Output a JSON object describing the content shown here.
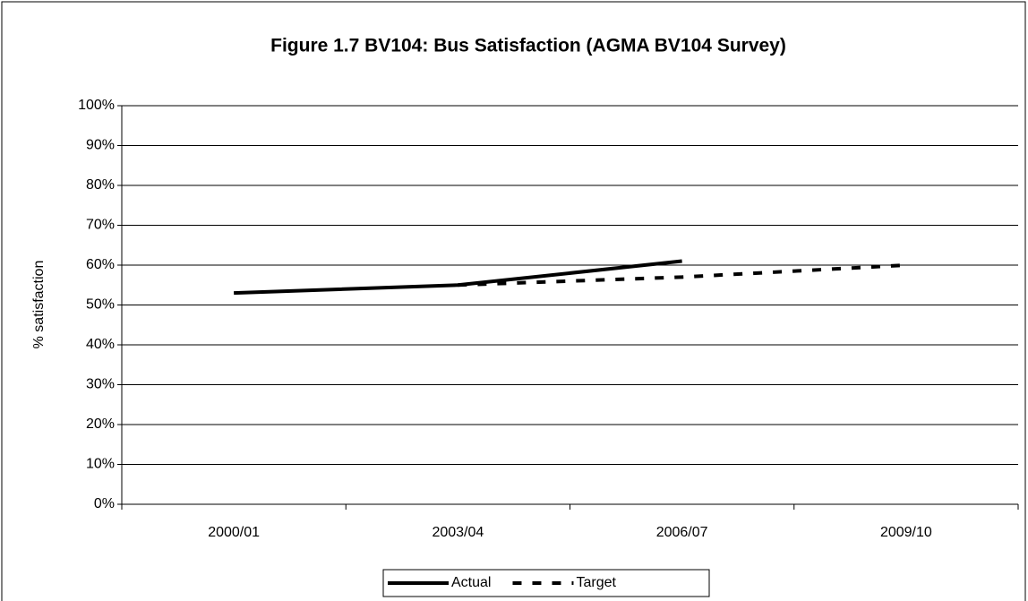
{
  "chart_data": {
    "type": "line",
    "title": "Figure 1.7 BV104: Bus Satisfaction (AGMA BV104 Survey)",
    "y_label": "% satisfaction",
    "categories": [
      "2000/01",
      "2003/04",
      "2006/07",
      "2009/10"
    ],
    "series": [
      {
        "name": "Actual",
        "color": "#000000",
        "line_style": "solid",
        "values": [
          53,
          55,
          61,
          null
        ]
      },
      {
        "name": "Target",
        "color": "#000000",
        "line_style": "dashed",
        "values": [
          null,
          55,
          57,
          60
        ]
      }
    ],
    "ylim": [
      0,
      100
    ],
    "yticks": [
      {
        "value": 0,
        "label": "0%"
      },
      {
        "value": 10,
        "label": "10%"
      },
      {
        "value": 20,
        "label": "20%"
      },
      {
        "value": 30,
        "label": "30%"
      },
      {
        "value": 40,
        "label": "40%"
      },
      {
        "value": 50,
        "label": "50%"
      },
      {
        "value": 60,
        "label": "60%"
      },
      {
        "value": 70,
        "label": "70%"
      },
      {
        "value": 80,
        "label": "80%"
      },
      {
        "value": 90,
        "label": "90%"
      },
      {
        "value": 100,
        "label": "100%"
      }
    ],
    "grid": true,
    "legend": "bottom"
  }
}
